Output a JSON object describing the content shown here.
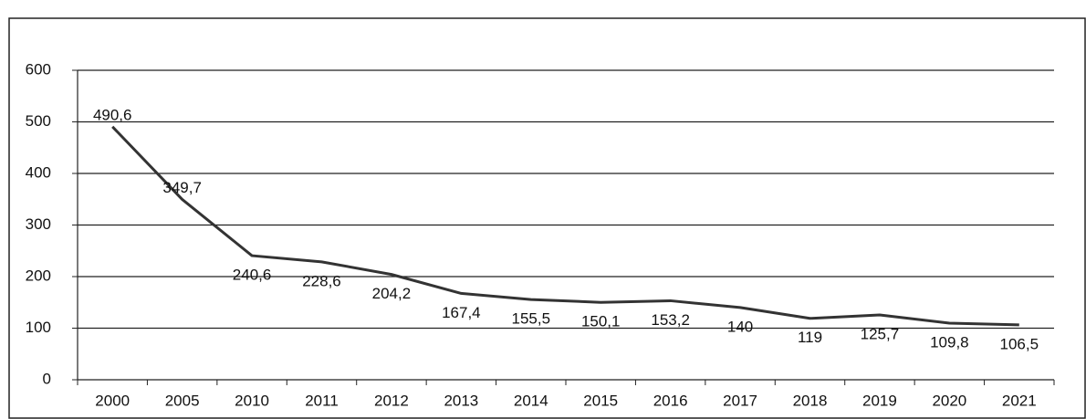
{
  "chart_data": {
    "type": "line",
    "categories": [
      "2000",
      "2005",
      "2010",
      "2011",
      "2012",
      "2013",
      "2014",
      "2015",
      "2016",
      "2017",
      "2018",
      "2019",
      "2020",
      "2021"
    ],
    "values": [
      490.6,
      349.7,
      240.6,
      228.6,
      204.2,
      167.4,
      155.5,
      150.1,
      153.2,
      140,
      119,
      125.7,
      109.8,
      106.5
    ],
    "value_labels": [
      "490,6",
      "349,7",
      "240,6",
      "228,6",
      "204,2",
      "167,4",
      "155,5",
      "150,1",
      "153,2",
      "140",
      "119",
      "125,7",
      "109,8",
      "106,5"
    ],
    "color": "#333333",
    "ylim": [
      0,
      600
    ],
    "yticks": [
      0,
      100,
      200,
      300,
      400,
      500,
      600
    ],
    "grid": true
  }
}
